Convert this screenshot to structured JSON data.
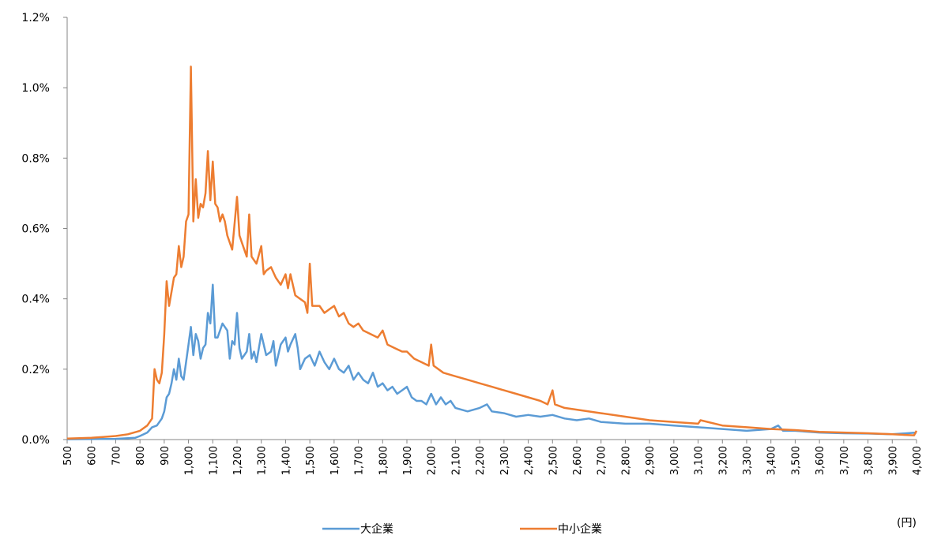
{
  "chart_data": {
    "type": "line",
    "title": "",
    "xlabel": "",
    "ylabel": "",
    "x_unit": "(円)",
    "xlim": [
      500,
      4000
    ],
    "ylim": [
      0,
      1.2
    ],
    "x_ticks": [
      500,
      600,
      700,
      800,
      900,
      1000,
      1100,
      1200,
      1300,
      1400,
      1500,
      1600,
      1700,
      1800,
      1900,
      2000,
      2100,
      2200,
      2300,
      2400,
      2500,
      2600,
      2700,
      2800,
      2900,
      3000,
      3100,
      3200,
      3300,
      3400,
      3500,
      3600,
      3700,
      3800,
      3900,
      4000
    ],
    "x_tick_labels": [
      "500",
      "600",
      "700",
      "800",
      "900",
      "1,000",
      "1,100",
      "1,200",
      "1,300",
      "1,400",
      "1,500",
      "1,600",
      "1,700",
      "1,800",
      "1,900",
      "2,000",
      "2,100",
      "2,200",
      "2,300",
      "2,400",
      "2,500",
      "2,600",
      "2,700",
      "2,800",
      "2,900",
      "3,000",
      "3,100",
      "3,200",
      "3,300",
      "3,400",
      "3,500",
      "3,600",
      "3,700",
      "3,800",
      "3,900",
      "4,000"
    ],
    "y_ticks": [
      0,
      0.2,
      0.4,
      0.6,
      0.8,
      1.0,
      1.2
    ],
    "y_tick_labels": [
      "0.0%",
      "0.2%",
      "0.4%",
      "0.6%",
      "0.8%",
      "1.0%",
      "1.2%"
    ],
    "grid": false,
    "legend": "bottom",
    "series": [
      {
        "name": "大企業",
        "color": "#5B9BD5",
        "points": [
          [
            500,
            0.001
          ],
          [
            700,
            0.002
          ],
          [
            780,
            0.005
          ],
          [
            800,
            0.01
          ],
          [
            830,
            0.02
          ],
          [
            850,
            0.035
          ],
          [
            870,
            0.04
          ],
          [
            890,
            0.06
          ],
          [
            900,
            0.08
          ],
          [
            910,
            0.12
          ],
          [
            920,
            0.13
          ],
          [
            930,
            0.16
          ],
          [
            940,
            0.2
          ],
          [
            950,
            0.17
          ],
          [
            960,
            0.23
          ],
          [
            970,
            0.18
          ],
          [
            980,
            0.17
          ],
          [
            990,
            0.22
          ],
          [
            1000,
            0.27
          ],
          [
            1010,
            0.32
          ],
          [
            1020,
            0.24
          ],
          [
            1030,
            0.3
          ],
          [
            1040,
            0.28
          ],
          [
            1050,
            0.23
          ],
          [
            1060,
            0.26
          ],
          [
            1070,
            0.27
          ],
          [
            1080,
            0.36
          ],
          [
            1090,
            0.33
          ],
          [
            1100,
            0.44
          ],
          [
            1110,
            0.29
          ],
          [
            1120,
            0.29
          ],
          [
            1140,
            0.33
          ],
          [
            1150,
            0.32
          ],
          [
            1160,
            0.31
          ],
          [
            1170,
            0.23
          ],
          [
            1180,
            0.28
          ],
          [
            1190,
            0.27
          ],
          [
            1200,
            0.36
          ],
          [
            1210,
            0.26
          ],
          [
            1220,
            0.23
          ],
          [
            1240,
            0.25
          ],
          [
            1250,
            0.3
          ],
          [
            1260,
            0.23
          ],
          [
            1270,
            0.25
          ],
          [
            1280,
            0.22
          ],
          [
            1300,
            0.3
          ],
          [
            1320,
            0.24
          ],
          [
            1340,
            0.25
          ],
          [
            1350,
            0.28
          ],
          [
            1360,
            0.21
          ],
          [
            1380,
            0.27
          ],
          [
            1400,
            0.29
          ],
          [
            1410,
            0.25
          ],
          [
            1420,
            0.27
          ],
          [
            1440,
            0.3
          ],
          [
            1450,
            0.26
          ],
          [
            1460,
            0.2
          ],
          [
            1480,
            0.23
          ],
          [
            1500,
            0.24
          ],
          [
            1520,
            0.21
          ],
          [
            1540,
            0.25
          ],
          [
            1560,
            0.22
          ],
          [
            1580,
            0.2
          ],
          [
            1600,
            0.23
          ],
          [
            1620,
            0.2
          ],
          [
            1640,
            0.19
          ],
          [
            1660,
            0.21
          ],
          [
            1680,
            0.17
          ],
          [
            1700,
            0.19
          ],
          [
            1720,
            0.17
          ],
          [
            1740,
            0.16
          ],
          [
            1760,
            0.19
          ],
          [
            1780,
            0.15
          ],
          [
            1800,
            0.16
          ],
          [
            1820,
            0.14
          ],
          [
            1840,
            0.15
          ],
          [
            1860,
            0.13
          ],
          [
            1880,
            0.14
          ],
          [
            1900,
            0.15
          ],
          [
            1920,
            0.12
          ],
          [
            1940,
            0.11
          ],
          [
            1960,
            0.11
          ],
          [
            1980,
            0.1
          ],
          [
            2000,
            0.13
          ],
          [
            2020,
            0.1
          ],
          [
            2040,
            0.12
          ],
          [
            2060,
            0.1
          ],
          [
            2080,
            0.11
          ],
          [
            2100,
            0.09
          ],
          [
            2150,
            0.08
          ],
          [
            2200,
            0.09
          ],
          [
            2230,
            0.1
          ],
          [
            2250,
            0.08
          ],
          [
            2300,
            0.075
          ],
          [
            2350,
            0.065
          ],
          [
            2400,
            0.07
          ],
          [
            2450,
            0.065
          ],
          [
            2500,
            0.07
          ],
          [
            2550,
            0.06
          ],
          [
            2600,
            0.055
          ],
          [
            2650,
            0.06
          ],
          [
            2700,
            0.05
          ],
          [
            2800,
            0.045
          ],
          [
            2900,
            0.045
          ],
          [
            3000,
            0.04
          ],
          [
            3100,
            0.035
          ],
          [
            3200,
            0.03
          ],
          [
            3300,
            0.025
          ],
          [
            3400,
            0.03
          ],
          [
            3430,
            0.04
          ],
          [
            3450,
            0.025
          ],
          [
            3500,
            0.025
          ],
          [
            3600,
            0.02
          ],
          [
            3700,
            0.018
          ],
          [
            3800,
            0.017
          ],
          [
            3900,
            0.015
          ],
          [
            4000,
            0.02
          ]
        ]
      },
      {
        "name": "中小企業",
        "color": "#ED7D31",
        "points": [
          [
            500,
            0.003
          ],
          [
            600,
            0.005
          ],
          [
            700,
            0.01
          ],
          [
            750,
            0.015
          ],
          [
            800,
            0.025
          ],
          [
            830,
            0.04
          ],
          [
            850,
            0.06
          ],
          [
            860,
            0.2
          ],
          [
            870,
            0.17
          ],
          [
            880,
            0.16
          ],
          [
            890,
            0.19
          ],
          [
            900,
            0.3
          ],
          [
            910,
            0.45
          ],
          [
            920,
            0.38
          ],
          [
            930,
            0.42
          ],
          [
            940,
            0.46
          ],
          [
            950,
            0.47
          ],
          [
            960,
            0.55
          ],
          [
            970,
            0.49
          ],
          [
            980,
            0.52
          ],
          [
            990,
            0.62
          ],
          [
            1000,
            0.64
          ],
          [
            1010,
            1.06
          ],
          [
            1020,
            0.62
          ],
          [
            1030,
            0.74
          ],
          [
            1040,
            0.63
          ],
          [
            1050,
            0.67
          ],
          [
            1060,
            0.66
          ],
          [
            1070,
            0.7
          ],
          [
            1080,
            0.82
          ],
          [
            1090,
            0.68
          ],
          [
            1100,
            0.79
          ],
          [
            1110,
            0.67
          ],
          [
            1120,
            0.66
          ],
          [
            1130,
            0.62
          ],
          [
            1140,
            0.64
          ],
          [
            1150,
            0.62
          ],
          [
            1160,
            0.58
          ],
          [
            1180,
            0.54
          ],
          [
            1200,
            0.69
          ],
          [
            1210,
            0.58
          ],
          [
            1220,
            0.56
          ],
          [
            1240,
            0.52
          ],
          [
            1250,
            0.64
          ],
          [
            1260,
            0.52
          ],
          [
            1280,
            0.5
          ],
          [
            1300,
            0.55
          ],
          [
            1310,
            0.47
          ],
          [
            1320,
            0.48
          ],
          [
            1340,
            0.49
          ],
          [
            1360,
            0.46
          ],
          [
            1380,
            0.44
          ],
          [
            1400,
            0.47
          ],
          [
            1410,
            0.43
          ],
          [
            1420,
            0.47
          ],
          [
            1440,
            0.41
          ],
          [
            1460,
            0.4
          ],
          [
            1480,
            0.39
          ],
          [
            1490,
            0.36
          ],
          [
            1500,
            0.5
          ],
          [
            1510,
            0.38
          ],
          [
            1540,
            0.38
          ],
          [
            1560,
            0.36
          ],
          [
            1580,
            0.37
          ],
          [
            1600,
            0.38
          ],
          [
            1620,
            0.35
          ],
          [
            1640,
            0.36
          ],
          [
            1660,
            0.33
          ],
          [
            1680,
            0.32
          ],
          [
            1700,
            0.33
          ],
          [
            1720,
            0.31
          ],
          [
            1750,
            0.3
          ],
          [
            1780,
            0.29
          ],
          [
            1800,
            0.31
          ],
          [
            1820,
            0.27
          ],
          [
            1850,
            0.26
          ],
          [
            1880,
            0.25
          ],
          [
            1900,
            0.25
          ],
          [
            1930,
            0.23
          ],
          [
            1960,
            0.22
          ],
          [
            1990,
            0.21
          ],
          [
            2000,
            0.27
          ],
          [
            2010,
            0.21
          ],
          [
            2050,
            0.19
          ],
          [
            2100,
            0.18
          ],
          [
            2150,
            0.17
          ],
          [
            2200,
            0.16
          ],
          [
            2250,
            0.15
          ],
          [
            2300,
            0.14
          ],
          [
            2350,
            0.13
          ],
          [
            2400,
            0.12
          ],
          [
            2450,
            0.11
          ],
          [
            2480,
            0.1
          ],
          [
            2500,
            0.14
          ],
          [
            2510,
            0.1
          ],
          [
            2550,
            0.09
          ],
          [
            2600,
            0.085
          ],
          [
            2700,
            0.075
          ],
          [
            2800,
            0.065
          ],
          [
            2900,
            0.055
          ],
          [
            3000,
            0.05
          ],
          [
            3100,
            0.045
          ],
          [
            3110,
            0.055
          ],
          [
            3200,
            0.04
          ],
          [
            3300,
            0.035
          ],
          [
            3400,
            0.03
          ],
          [
            3500,
            0.027
          ],
          [
            3600,
            0.022
          ],
          [
            3700,
            0.02
          ],
          [
            3800,
            0.018
          ],
          [
            3900,
            0.015
          ],
          [
            3990,
            0.012
          ],
          [
            4000,
            0.025
          ]
        ]
      }
    ]
  }
}
